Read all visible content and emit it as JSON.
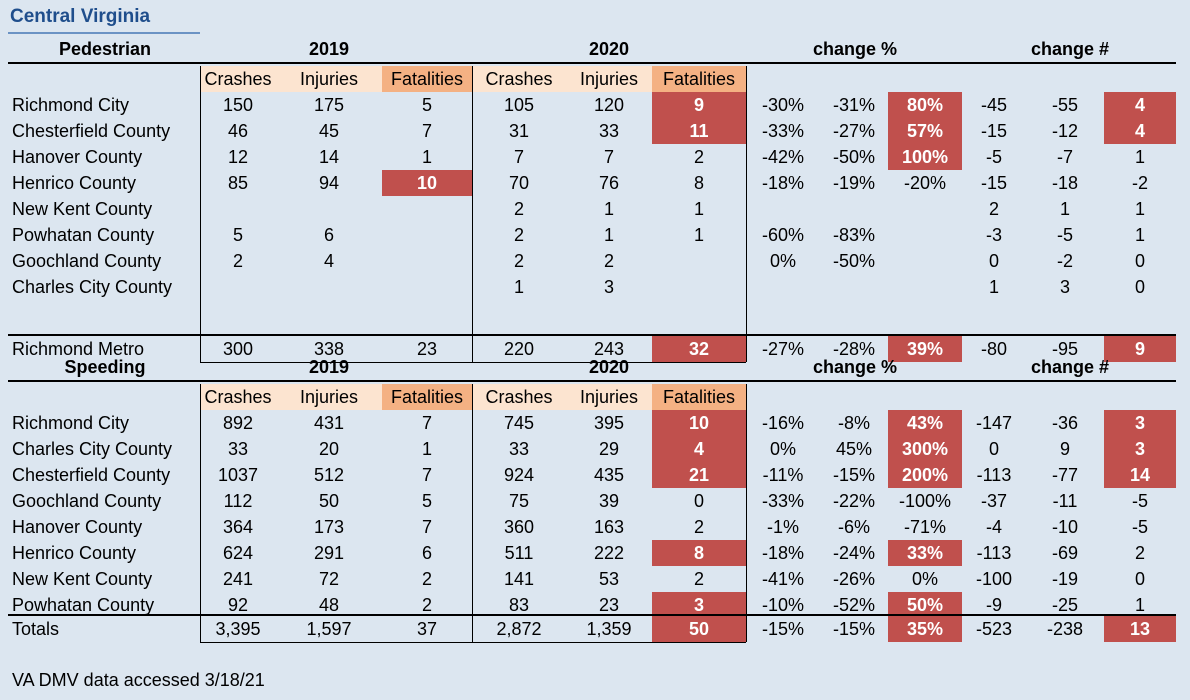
{
  "title": "Central Virginia",
  "note": "VA DMV data accessed 3/18/21",
  "year1": "2019",
  "year2": "2020",
  "change_pct": "change %",
  "change_num": "change #",
  "subheaders": [
    "Crashes",
    "Injuries",
    "Fatalities",
    "Crashes",
    "Injuries",
    "Fatalities"
  ],
  "pedestrian": {
    "label": "Pedestrian",
    "rows": [
      {
        "name": "Richmond City",
        "v": [
          "150",
          "175",
          "5",
          "105",
          "120",
          "9",
          "-30%",
          "-31%",
          "80%",
          "-45",
          "-55",
          "4"
        ],
        "red": [
          5,
          8,
          11
        ]
      },
      {
        "name": "Chesterfield County",
        "v": [
          "46",
          "45",
          "7",
          "31",
          "33",
          "11",
          "-33%",
          "-27%",
          "57%",
          "-15",
          "-12",
          "4"
        ],
        "red": [
          5,
          8,
          11
        ]
      },
      {
        "name": "Hanover County",
        "v": [
          "12",
          "14",
          "1",
          "7",
          "7",
          "2",
          "-42%",
          "-50%",
          "100%",
          "-5",
          "-7",
          "1"
        ],
        "red": [
          8
        ]
      },
      {
        "name": "Henrico County",
        "v": [
          "85",
          "94",
          "10",
          "70",
          "76",
          "8",
          "-18%",
          "-19%",
          "-20%",
          "-15",
          "-18",
          "-2"
        ],
        "red": [
          2
        ]
      },
      {
        "name": "New Kent County",
        "v": [
          "",
          "",
          "",
          "2",
          "1",
          "1",
          "",
          "",
          "",
          "2",
          "1",
          "1"
        ],
        "red": []
      },
      {
        "name": "Powhatan County",
        "v": [
          "5",
          "6",
          "",
          "2",
          "1",
          "1",
          "-60%",
          "-83%",
          "",
          "-3",
          "-5",
          "1"
        ],
        "red": []
      },
      {
        "name": "Goochland County",
        "v": [
          "2",
          "4",
          "",
          "2",
          "2",
          "",
          "0%",
          "-50%",
          "",
          "0",
          "-2",
          "0"
        ],
        "red": []
      },
      {
        "name": "Charles City County",
        "v": [
          "",
          "",
          "",
          "1",
          "3",
          "",
          "",
          "",
          "",
          "1",
          "3",
          "0"
        ],
        "red": []
      }
    ],
    "total": {
      "name": "Richmond Metro",
      "v": [
        "300",
        "338",
        "23",
        "220",
        "243",
        "32",
        "-27%",
        "-28%",
        "39%",
        "-80",
        "-95",
        "9"
      ],
      "red": [
        5,
        8,
        11
      ]
    }
  },
  "speeding": {
    "label": "Speeding",
    "rows": [
      {
        "name": "Richmond City",
        "v": [
          "892",
          "431",
          "7",
          "745",
          "395",
          "10",
          "-16%",
          "-8%",
          "43%",
          "-147",
          "-36",
          "3"
        ],
        "red": [
          5,
          8,
          11
        ]
      },
      {
        "name": "Charles City County",
        "v": [
          "33",
          "20",
          "1",
          "33",
          "29",
          "4",
          "0%",
          "45%",
          "300%",
          "0",
          "9",
          "3"
        ],
        "red": [
          5,
          8,
          11
        ]
      },
      {
        "name": "Chesterfield County",
        "v": [
          "1037",
          "512",
          "7",
          "924",
          "435",
          "21",
          "-11%",
          "-15%",
          "200%",
          "-113",
          "-77",
          "14"
        ],
        "red": [
          5,
          8,
          11
        ]
      },
      {
        "name": "Goochland County",
        "v": [
          "112",
          "50",
          "5",
          "75",
          "39",
          "0",
          "-33%",
          "-22%",
          "-100%",
          "-37",
          "-11",
          "-5"
        ],
        "red": []
      },
      {
        "name": "Hanover County",
        "v": [
          "364",
          "173",
          "7",
          "360",
          "163",
          "2",
          "-1%",
          "-6%",
          "-71%",
          "-4",
          "-10",
          "-5"
        ],
        "red": []
      },
      {
        "name": "Henrico County",
        "v": [
          "624",
          "291",
          "6",
          "511",
          "222",
          "8",
          "-18%",
          "-24%",
          "33%",
          "-113",
          "-69",
          "2"
        ],
        "red": [
          5,
          8
        ]
      },
      {
        "name": "New Kent County",
        "v": [
          "241",
          "72",
          "2",
          "141",
          "53",
          "2",
          "-41%",
          "-26%",
          "0%",
          "-100",
          "-19",
          "0"
        ],
        "red": []
      },
      {
        "name": "Powhatan County",
        "v": [
          "92",
          "48",
          "2",
          "83",
          "23",
          "3",
          "-10%",
          "-52%",
          "50%",
          "-9",
          "-25",
          "1"
        ],
        "red": [
          5,
          8
        ]
      }
    ],
    "total": {
      "name": "Totals",
      "v": [
        "3,395",
        "1,597",
        "37",
        "2,872",
        "1,359",
        "50",
        "-15%",
        "-15%",
        "35%",
        "-523",
        "-238",
        "13"
      ],
      "red": [
        5,
        8,
        11
      ]
    }
  }
}
